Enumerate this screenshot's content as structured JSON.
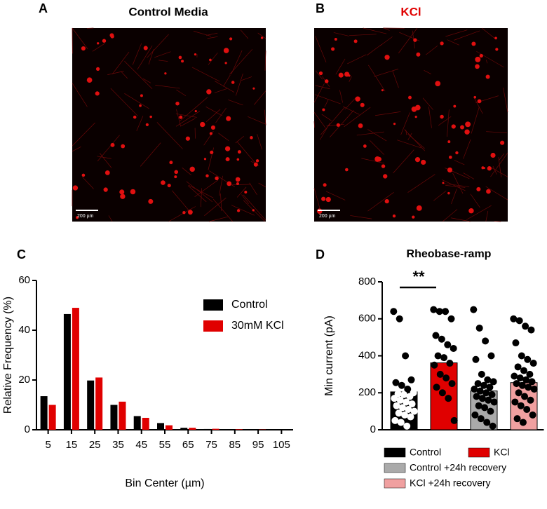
{
  "images": [
    {
      "letter": "A",
      "title": "Control Media",
      "title_color": "#000000",
      "scale_bar": "200 µm"
    },
    {
      "letter": "B",
      "title": "KCl",
      "title_color": "#e00000",
      "scale_bar": "200 µm"
    }
  ],
  "chart_data": [
    {
      "type": "grouped_bar",
      "letter": "C",
      "xlabel": "Bin Center (µm)",
      "ylabel": "Relative Frequency (%)",
      "categories": [
        "5",
        "15",
        "25",
        "35",
        "45",
        "55",
        "65",
        "75",
        "85",
        "95",
        "105"
      ],
      "series": [
        {
          "name": "Control",
          "color": "#000000",
          "values": [
            13.5,
            46.5,
            19.8,
            10,
            5.5,
            2.7,
            0.8,
            0.3,
            0.2,
            0.1,
            0
          ]
        },
        {
          "name": "30mM KCl",
          "color": "#e00000",
          "values": [
            10,
            49,
            21,
            11.3,
            4.8,
            1.8,
            0.8,
            0.4,
            0.2,
            0.1,
            0
          ]
        }
      ],
      "ylim": [
        0,
        60
      ],
      "yticks": [
        0,
        20,
        40,
        60
      ],
      "legend": "upper right"
    },
    {
      "type": "bar_scatter",
      "letter": "D",
      "title": "Rheobase-ramp",
      "ylabel": "Min current (pA)",
      "categories": [
        "Control",
        "KCl",
        "Control +24h recovery",
        "KCl +24h recovery"
      ],
      "colors": [
        "#000000",
        "#e00000",
        "#aaaaaa",
        "#f0a0a0"
      ],
      "values": [
        205,
        362,
        210,
        255
      ],
      "points": [
        [
          640,
          600,
          400,
          270,
          255,
          240,
          220,
          200,
          195,
          190,
          180,
          170,
          160,
          150,
          140,
          130,
          120,
          110,
          100,
          90,
          80,
          70,
          50,
          40,
          20
        ],
        [
          650,
          640,
          640,
          600,
          510,
          490,
          460,
          440,
          400,
          390,
          360,
          350,
          300,
          280,
          250,
          230,
          200,
          170,
          50
        ],
        [
          650,
          550,
          480,
          400,
          380,
          300,
          270,
          260,
          250,
          240,
          230,
          220,
          210,
          200,
          190,
          180,
          170,
          160,
          150,
          130,
          120,
          100,
          80,
          60,
          40,
          20
        ],
        [
          600,
          590,
          560,
          540,
          470,
          400,
          380,
          360,
          340,
          320,
          300,
          290,
          280,
          270,
          260,
          250,
          240,
          230,
          220,
          200,
          180,
          160,
          150,
          130,
          110,
          80,
          60,
          40
        ]
      ],
      "annotation": "**",
      "ylim": [
        0,
        800
      ],
      "yticks": [
        0,
        200,
        400,
        600,
        800
      ],
      "legend": "bottom"
    }
  ]
}
